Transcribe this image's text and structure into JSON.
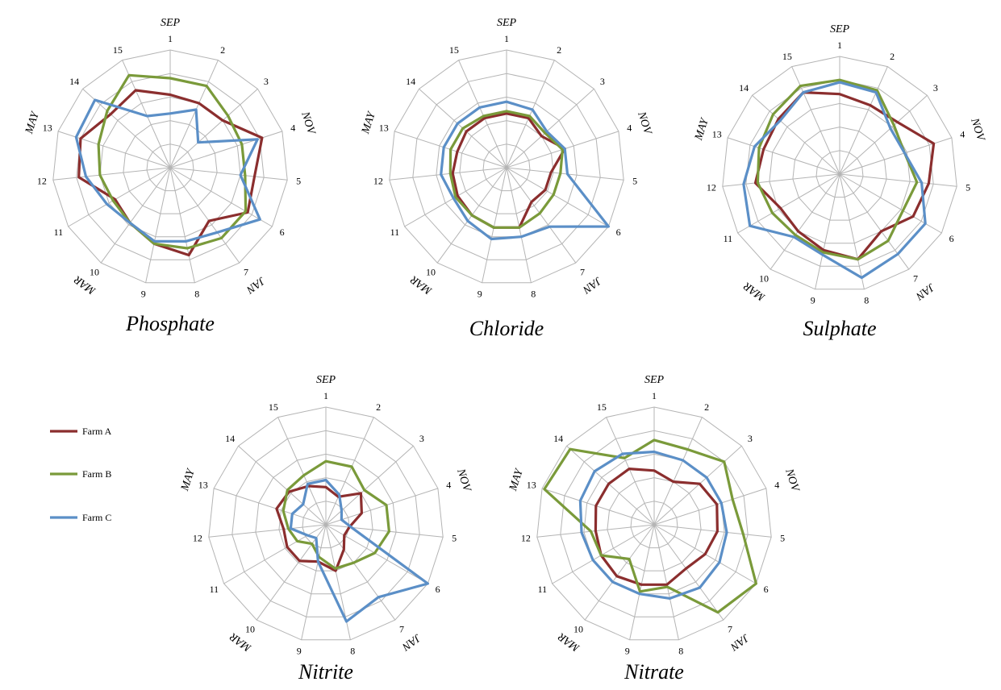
{
  "spokes": [
    "1",
    "2",
    "3",
    "4",
    "5",
    "6",
    "7",
    "8",
    "9",
    "10",
    "11",
    "12",
    "13",
    "14",
    "15"
  ],
  "month_labels": [
    {
      "text": "SEP",
      "spoke": 1
    },
    {
      "text": "NOV",
      "spoke": 4
    },
    {
      "text": "JAN",
      "spoke": 7
    },
    {
      "text": "MAR",
      "spoke": 10
    },
    {
      "text": "MAY",
      "spoke": 13
    }
  ],
  "legend": [
    {
      "name": "Farm A",
      "color": "#8b2e2e"
    },
    {
      "name": "Farm B",
      "color": "#7a9a3a"
    },
    {
      "name": "Farm C",
      "color": "#5b8fc7"
    }
  ],
  "chart_data": [
    {
      "type": "radar",
      "title": "Phosphate",
      "categories": [
        "1",
        "2",
        "3",
        "4",
        "5",
        "6",
        "7",
        "8",
        "9",
        "10",
        "11",
        "12",
        "13",
        "14",
        "15"
      ],
      "rmax": 5,
      "series": [
        {
          "name": "Farm A",
          "values": [
            3.1,
            3.0,
            3.0,
            4.1,
            3.6,
            3.8,
            2.8,
            3.8,
            3.3,
            2.9,
            2.7,
            3.9,
            4.0,
            3.4,
            3.6
          ]
        },
        {
          "name": "Farm B",
          "values": [
            3.8,
            3.8,
            3.3,
            3.2,
            3.2,
            3.7,
            3.7,
            3.5,
            3.3,
            2.9,
            2.8,
            3.0,
            3.2,
            3.6,
            4.3
          ]
        },
        {
          "name": "Farm C",
          "values": [
            2.3,
            2.7,
            1.6,
            3.9,
            3.0,
            4.4,
            3.4,
            3.2,
            3.2,
            2.9,
            3.1,
            3.6,
            4.2,
            4.3,
            2.4
          ]
        }
      ]
    },
    {
      "type": "radar",
      "title": "Chloride",
      "categories": [
        "1",
        "2",
        "3",
        "4",
        "5",
        "6",
        "7",
        "8",
        "9",
        "10",
        "11",
        "12",
        "13",
        "14",
        "15"
      ],
      "rmax": 5,
      "series": [
        {
          "name": "Farm A",
          "values": [
            2.3,
            2.3,
            2.0,
            2.6,
            1.9,
            1.9,
            1.8,
            2.6,
            2.6,
            2.5,
            2.4,
            2.3,
            2.2,
            2.3,
            2.3
          ]
        },
        {
          "name": "Farm B",
          "values": [
            2.4,
            2.4,
            2.2,
            2.5,
            2.3,
            2.3,
            2.4,
            2.6,
            2.6,
            2.5,
            2.5,
            2.4,
            2.5,
            2.5,
            2.4
          ]
        },
        {
          "name": "Farm C",
          "values": [
            2.8,
            2.7,
            2.3,
            2.6,
            2.6,
            5.0,
            3.1,
            3.0,
            3.1,
            2.8,
            2.6,
            2.8,
            2.8,
            2.8,
            2.8
          ]
        }
      ]
    },
    {
      "type": "radar",
      "title": "Sulphate",
      "categories": [
        "1",
        "2",
        "3",
        "4",
        "5",
        "6",
        "7",
        "8",
        "9",
        "10",
        "11",
        "12",
        "13",
        "14",
        "15"
      ],
      "rmax": 5,
      "series": [
        {
          "name": "Farm A",
          "values": [
            3.4,
            3.2,
            3.3,
            4.2,
            3.8,
            3.6,
            3.0,
            3.7,
            3.3,
            3.0,
            2.9,
            3.6,
            3.4,
            3.5,
            3.8
          ]
        },
        {
          "name": "Farm B",
          "values": [
            4.0,
            3.9,
            3.1,
            2.9,
            3.3,
            3.1,
            3.5,
            3.7,
            3.4,
            3.2,
            3.3,
            3.5,
            3.6,
            3.8,
            4.1
          ]
        },
        {
          "name": "Farm C",
          "values": [
            3.9,
            3.8,
            2.9,
            2.9,
            3.5,
            4.2,
            4.2,
            4.5,
            3.5,
            3.3,
            4.4,
            4.1,
            3.8,
            3.4,
            3.8
          ]
        }
      ]
    },
    {
      "type": "radar",
      "title": "Nitrite",
      "categories": [
        "1",
        "2",
        "3",
        "4",
        "5",
        "6",
        "7",
        "8",
        "9",
        "10",
        "11",
        "12",
        "13",
        "14",
        "15"
      ],
      "rmax": 5,
      "series": [
        {
          "name": "Farm A",
          "values": [
            1.6,
            1.3,
            2.0,
            1.6,
            1.0,
            0.9,
            1.3,
            2.0,
            1.6,
            1.9,
            1.9,
            1.8,
            2.2,
            2.1,
            1.8
          ]
        },
        {
          "name": "Farm B",
          "values": [
            2.7,
            2.7,
            2.2,
            2.7,
            2.7,
            2.4,
            2.0,
            1.9,
            1.4,
            1.0,
            1.4,
            1.6,
            1.9,
            2.2,
            2.3
          ]
        },
        {
          "name": "Farm C",
          "values": [
            1.9,
            1.4,
            0.9,
            0.7,
            1.1,
            5.0,
            3.8,
            4.2,
            1.6,
            0.7,
            0.9,
            1.5,
            1.5,
            1.3,
            1.9
          ]
        }
      ]
    },
    {
      "type": "radar",
      "title": "Nitrate",
      "categories": [
        "1",
        "2",
        "3",
        "4",
        "5",
        "6",
        "7",
        "8",
        "9",
        "10",
        "11",
        "12",
        "13",
        "14",
        "15"
      ],
      "rmax": 5,
      "series": [
        {
          "name": "Farm A",
          "values": [
            2.3,
            2.0,
            2.6,
            2.8,
            2.7,
            2.5,
            2.3,
            2.6,
            2.6,
            2.7,
            2.6,
            2.5,
            2.6,
            2.6,
            2.6
          ]
        },
        {
          "name": "Farm B",
          "values": [
            3.6,
            3.5,
            4.0,
            3.5,
            3.8,
            5.0,
            4.6,
            2.7,
            2.9,
            1.8,
            2.6,
            2.7,
            4.9,
            4.8,
            3.1
          ]
        },
        {
          "name": "Farm C",
          "values": [
            3.1,
            3.0,
            3.0,
            3.0,
            3.1,
            3.2,
            3.3,
            3.2,
            3.0,
            3.0,
            3.0,
            3.1,
            3.3,
            3.4,
            3.3
          ]
        }
      ]
    }
  ]
}
